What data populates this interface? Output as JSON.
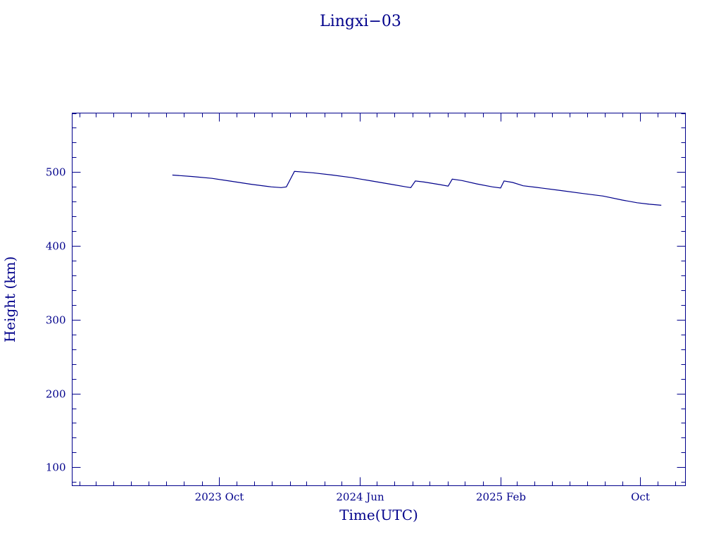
{
  "chart_data": {
    "type": "line",
    "title": "Lingxi−03",
    "xlabel": "Time(UTC)",
    "ylabel": "Height (km)",
    "x_axis": {
      "type": "date",
      "range": [
        "2023-01-19",
        "2025-12-19"
      ],
      "major_ticks": [
        {
          "date": "2023-10-01",
          "label": "2023 Oct"
        },
        {
          "date": "2024-06-01",
          "label": "2024 Jun"
        },
        {
          "date": "2025-02-01",
          "label": "2025 Feb"
        },
        {
          "date": "2025-10-01",
          "label": "Oct"
        }
      ],
      "minor_tick_interval_months": 1
    },
    "y_axis": {
      "range": [
        75,
        580
      ],
      "major_ticks": [
        100,
        200,
        300,
        400,
        500
      ],
      "major_labels": [
        "100",
        "200",
        "300",
        "400",
        "500"
      ],
      "minor_tick_interval": 20
    },
    "grid": false,
    "legend": "none",
    "colors": {
      "line": "#00008b",
      "axes": "#00008b",
      "text": "#00008b",
      "background": "#ffffff"
    },
    "series": [
      {
        "points": [
          [
            "2023-07-12",
            496
          ],
          [
            "2023-08-16",
            494
          ],
          [
            "2023-09-19",
            491.5
          ],
          [
            "2023-10-23",
            487.5
          ],
          [
            "2023-11-26",
            483.5
          ],
          [
            "2023-12-31",
            480
          ],
          [
            "2024-01-17",
            479
          ],
          [
            "2024-01-26",
            480
          ],
          [
            "2024-02-09",
            501
          ],
          [
            "2024-03-12",
            499
          ],
          [
            "2024-04-15",
            496
          ],
          [
            "2024-05-19",
            492.5
          ],
          [
            "2024-06-22",
            488
          ],
          [
            "2024-07-26",
            483.5
          ],
          [
            "2024-08-21",
            480
          ],
          [
            "2024-08-29",
            479
          ],
          [
            "2024-09-06",
            488
          ],
          [
            "2024-09-21",
            486.5
          ],
          [
            "2024-10-19",
            483
          ],
          [
            "2024-11-02",
            481
          ],
          [
            "2024-11-09",
            490.5
          ],
          [
            "2024-11-26",
            488.5
          ],
          [
            "2024-12-22",
            484
          ],
          [
            "2025-01-18",
            480
          ],
          [
            "2025-02-01",
            478.5
          ],
          [
            "2025-02-07",
            488
          ],
          [
            "2025-02-22",
            486
          ],
          [
            "2025-03-12",
            481.5
          ],
          [
            "2025-04-12",
            478.5
          ],
          [
            "2025-05-17",
            475
          ],
          [
            "2025-06-24",
            471
          ],
          [
            "2025-07-29",
            467.5
          ],
          [
            "2025-09-01",
            462
          ],
          [
            "2025-09-26",
            458.5
          ],
          [
            "2025-10-17",
            456.5
          ],
          [
            "2025-11-07",
            455
          ]
        ]
      }
    ]
  }
}
